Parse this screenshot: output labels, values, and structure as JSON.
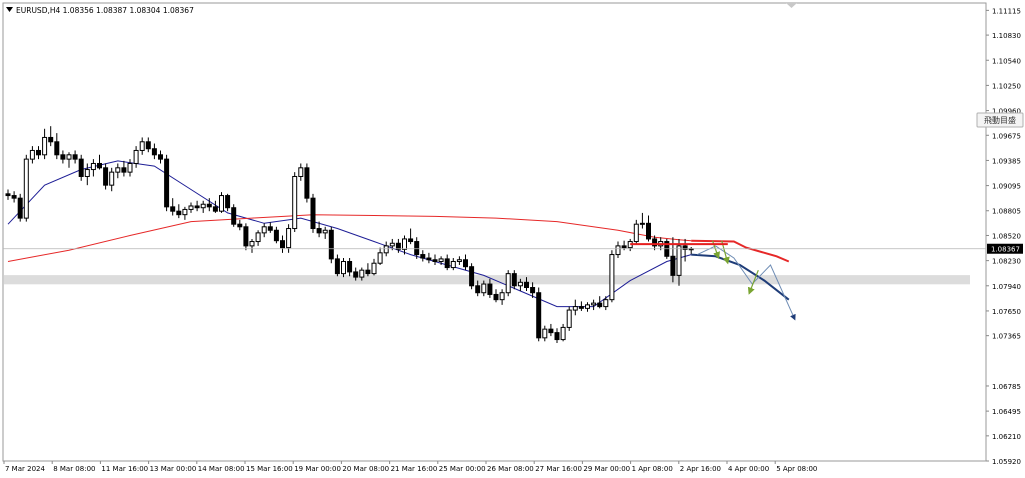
{
  "header": {
    "symbol_line": "EURUSD,H4  1.08356 1.08387 1.08304 1.08367"
  },
  "side_button_label": "飛動目盛",
  "chart_data": {
    "type": "candlestick",
    "symbol": "EURUSD",
    "timeframe": "H4",
    "ohlc_header": {
      "open": 1.08356,
      "high": 1.08387,
      "low": 1.08304,
      "close": 1.08367
    },
    "current_price_label": "1.08367",
    "ylim": [
      1.0592,
      1.112
    ],
    "y_tick_labels": [
      "1.11115",
      "1.10830",
      "1.10540",
      "1.10250",
      "1.09960",
      "1.09675",
      "1.09385",
      "1.09095",
      "1.08805",
      "1.08520",
      "1.08230",
      "1.07940",
      "1.07650",
      "1.07365",
      "1.06785",
      "1.06495",
      "1.06210",
      "1.05920"
    ],
    "x_tick_labels": [
      "7 Mar 2024",
      "8 Mar 08:00",
      "11 Mar 16:00",
      "13 Mar 00:00",
      "14 Mar 08:00",
      "15 Mar 16:00",
      "19 Mar 00:00",
      "20 Mar 08:00",
      "21 Mar 16:00",
      "25 Mar 00:00",
      "26 Mar 08:00",
      "27 Mar 16:00",
      "29 Mar 00:00",
      "1 Apr 08:00",
      "2 Apr 16:00",
      "4 Apr 00:00",
      "5 Apr 08:00"
    ],
    "candles": [
      [
        1.09,
        1.0905,
        1.0893,
        1.0898
      ],
      [
        1.0898,
        1.0903,
        1.089,
        1.0895
      ],
      [
        1.0895,
        1.09,
        1.0868,
        1.0872
      ],
      [
        1.0872,
        1.0945,
        1.0868,
        1.094
      ],
      [
        1.094,
        1.0955,
        1.0935,
        1.095
      ],
      [
        1.095,
        1.0955,
        1.094,
        1.0945
      ],
      [
        1.0945,
        1.0975,
        1.094,
        1.0965
      ],
      [
        1.0965,
        1.0978,
        1.0955,
        1.096
      ],
      [
        1.096,
        1.097,
        1.094,
        1.0945
      ],
      [
        1.0945,
        1.095,
        1.0935,
        1.094
      ],
      [
        1.094,
        1.0948,
        1.093,
        1.0945
      ],
      [
        1.0945,
        1.095,
        1.0935,
        1.094
      ],
      [
        1.094,
        1.0945,
        1.0915,
        1.092
      ],
      [
        1.092,
        1.0935,
        1.091,
        1.0928
      ],
      [
        1.0928,
        1.094,
        1.092,
        1.0935
      ],
      [
        1.0935,
        1.0945,
        1.0928,
        1.093
      ],
      [
        1.093,
        1.0935,
        1.0905,
        1.091
      ],
      [
        1.091,
        1.093,
        1.0903,
        1.0925
      ],
      [
        1.0925,
        1.0935,
        1.0918,
        1.093
      ],
      [
        1.093,
        1.0938,
        1.092,
        1.0925
      ],
      [
        1.0925,
        1.094,
        1.092,
        1.0935
      ],
      [
        1.0935,
        1.0955,
        1.093,
        1.095
      ],
      [
        1.095,
        1.0965,
        1.0945,
        1.096
      ],
      [
        1.096,
        1.0965,
        1.0948,
        1.0952
      ],
      [
        1.0952,
        1.0958,
        1.094,
        1.0945
      ],
      [
        1.0945,
        1.095,
        1.0935,
        1.094
      ],
      [
        1.094,
        1.0945,
        1.088,
        1.0885
      ],
      [
        1.0885,
        1.0895,
        1.0875,
        1.088
      ],
      [
        1.088,
        1.0888,
        1.0872,
        1.0876
      ],
      [
        1.0876,
        1.0885,
        1.087,
        1.0882
      ],
      [
        1.0882,
        1.089,
        1.0878,
        1.0886
      ],
      [
        1.0886,
        1.0892,
        1.088,
        1.0884
      ],
      [
        1.0884,
        1.0892,
        1.0878,
        1.0888
      ],
      [
        1.0888,
        1.0895,
        1.088,
        1.0885
      ],
      [
        1.0885,
        1.0892,
        1.0878,
        1.088
      ],
      [
        1.088,
        1.0902,
        1.0878,
        1.0898
      ],
      [
        1.0898,
        1.09,
        1.088,
        1.0884
      ],
      [
        1.0884,
        1.0888,
        1.0862,
        1.0865
      ],
      [
        1.0865,
        1.087,
        1.0858,
        1.0862
      ],
      [
        1.0862,
        1.0866,
        1.0835,
        1.084
      ],
      [
        1.084,
        1.0848,
        1.0832,
        1.0845
      ],
      [
        1.0845,
        1.0858,
        1.084,
        1.0855
      ],
      [
        1.0855,
        1.0866,
        1.085,
        1.0862
      ],
      [
        1.0862,
        1.0867,
        1.0855,
        1.0858
      ],
      [
        1.0858,
        1.0862,
        1.0843,
        1.0846
      ],
      [
        1.0846,
        1.0852,
        1.0832,
        1.0838
      ],
      [
        1.0838,
        1.0865,
        1.0832,
        1.086
      ],
      [
        1.086,
        1.0925,
        1.0856,
        1.092
      ],
      [
        1.092,
        1.0935,
        1.0915,
        1.093
      ],
      [
        1.093,
        1.0935,
        1.089,
        1.0895
      ],
      [
        1.0895,
        1.09,
        1.0855,
        1.086
      ],
      [
        1.086,
        1.0868,
        1.085,
        1.0855
      ],
      [
        1.0855,
        1.0862,
        1.0848,
        1.0858
      ],
      [
        1.0858,
        1.0862,
        1.082,
        1.0825
      ],
      [
        1.0825,
        1.083,
        1.0805,
        1.0808
      ],
      [
        1.0808,
        1.0826,
        1.0804,
        1.0822
      ],
      [
        1.0822,
        1.0826,
        1.0805,
        1.081
      ],
      [
        1.081,
        1.0815,
        1.08,
        1.0804
      ],
      [
        1.0804,
        1.0815,
        1.08,
        1.0812
      ],
      [
        1.0812,
        1.082,
        1.0805,
        1.0808
      ],
      [
        1.0808,
        1.0825,
        1.0806,
        1.082
      ],
      [
        1.082,
        1.0838,
        1.0818,
        1.0832
      ],
      [
        1.0832,
        1.0845,
        1.0828,
        1.084
      ],
      [
        1.084,
        1.0848,
        1.0835,
        1.0843
      ],
      [
        1.0843,
        1.0848,
        1.0832,
        1.0836
      ],
      [
        1.0836,
        1.0852,
        1.083,
        1.0848
      ],
      [
        1.0848,
        1.086,
        1.0842,
        1.0845
      ],
      [
        1.0845,
        1.085,
        1.0825,
        1.083
      ],
      [
        1.083,
        1.0835,
        1.0822,
        1.0826
      ],
      [
        1.0826,
        1.0832,
        1.082,
        1.0824
      ],
      [
        1.0824,
        1.083,
        1.0818,
        1.0822
      ],
      [
        1.0822,
        1.0828,
        1.0818,
        1.0825
      ],
      [
        1.0825,
        1.083,
        1.0812,
        1.0815
      ],
      [
        1.0815,
        1.0826,
        1.0812,
        1.0822
      ],
      [
        1.0822,
        1.0828,
        1.0818,
        1.0824
      ],
      [
        1.0824,
        1.083,
        1.0812,
        1.0816
      ],
      [
        1.0816,
        1.082,
        1.079,
        1.0794
      ],
      [
        1.0794,
        1.08,
        1.0782,
        1.0786
      ],
      [
        1.0786,
        1.08,
        1.0782,
        1.0796
      ],
      [
        1.0796,
        1.0802,
        1.078,
        1.0784
      ],
      [
        1.0784,
        1.079,
        1.0775,
        1.0778
      ],
      [
        1.0778,
        1.079,
        1.0772,
        1.0786
      ],
      [
        1.0786,
        1.0812,
        1.0782,
        1.0808
      ],
      [
        1.0808,
        1.0812,
        1.079,
        1.0794
      ],
      [
        1.0794,
        1.0802,
        1.0788,
        1.0798
      ],
      [
        1.0798,
        1.0804,
        1.0788,
        1.0792
      ],
      [
        1.0792,
        1.0798,
        1.078,
        1.0786
      ],
      [
        1.0786,
        1.0792,
        1.073,
        1.0734
      ],
      [
        1.0734,
        1.0748,
        1.073,
        1.0744
      ],
      [
        1.0744,
        1.075,
        1.0736,
        1.074
      ],
      [
        1.074,
        1.0745,
        1.0728,
        1.0732
      ],
      [
        1.0732,
        1.075,
        1.073,
        1.0746
      ],
      [
        1.0746,
        1.077,
        1.0742,
        1.0766
      ],
      [
        1.0766,
        1.0778,
        1.076,
        1.077
      ],
      [
        1.077,
        1.0776,
        1.0765,
        1.0768
      ],
      [
        1.0768,
        1.0775,
        1.0764,
        1.0772
      ],
      [
        1.0772,
        1.0778,
        1.0766,
        1.0774
      ],
      [
        1.0774,
        1.0782,
        1.0768,
        1.077
      ],
      [
        1.077,
        1.0782,
        1.0766,
        1.0778
      ],
      [
        1.0778,
        1.0835,
        1.0775,
        1.083
      ],
      [
        1.083,
        1.0845,
        1.0826,
        1.084
      ],
      [
        1.084,
        1.0846,
        1.0835,
        1.0838
      ],
      [
        1.0838,
        1.0848,
        1.0834,
        1.0845
      ],
      [
        1.0845,
        1.087,
        1.0842,
        1.0865
      ],
      [
        1.0865,
        1.0878,
        1.086,
        1.0866
      ],
      [
        1.0866,
        1.0875,
        1.0845,
        1.0848
      ],
      [
        1.0848,
        1.0852,
        1.0835,
        1.084
      ],
      [
        1.084,
        1.085,
        1.0835,
        1.0845
      ],
      [
        1.0845,
        1.0848,
        1.0825,
        1.0828
      ],
      [
        1.0828,
        1.085,
        1.0798,
        1.0806
      ],
      [
        1.0806,
        1.0848,
        1.0794,
        1.084
      ],
      [
        1.084,
        1.0848,
        1.0822,
        1.0836
      ],
      [
        1.08356,
        1.08387,
        1.08304,
        1.08367
      ]
    ],
    "series": [
      {
        "name": "",
        "color": "#1e1e96",
        "x": [
          0,
          6,
          12,
          18,
          24,
          30,
          36,
          42,
          48,
          54,
          60,
          66,
          72,
          78,
          84,
          90,
          96,
          102,
          108,
          112
        ],
        "values": [
          1.0865,
          1.091,
          1.0928,
          1.0938,
          1.0932,
          1.0905,
          1.0878,
          1.0866,
          1.0872,
          1.086,
          1.0845,
          1.083,
          1.0818,
          1.0806,
          1.0788,
          1.077,
          1.077,
          1.08,
          1.0822,
          1.083
        ]
      },
      {
        "name": "",
        "color": "#e62828",
        "x": [
          0,
          10,
          20,
          30,
          40,
          50,
          60,
          70,
          80,
          90,
          100,
          106,
          110,
          112
        ],
        "values": [
          1.0822,
          1.0835,
          1.0852,
          1.0868,
          1.0872,
          1.0876,
          1.0875,
          1.0874,
          1.0872,
          1.0868,
          1.0858,
          1.085,
          1.0847,
          1.0846
        ]
      }
    ],
    "projections": [
      {
        "name": "",
        "color": "#e62828",
        "x": [
          112,
          119,
          121,
          124,
          126,
          128
        ],
        "values": [
          1.0846,
          1.0845,
          1.0838,
          1.0832,
          1.0828,
          1.0822
        ]
      },
      {
        "name": "",
        "color": "#1e3c78",
        "x": [
          112,
          116,
          120,
          124,
          128
        ],
        "values": [
          1.083,
          1.0828,
          1.0818,
          1.08,
          1.0778
        ]
      }
    ],
    "support_zone": [
      1.0798,
      1.0804
    ],
    "resistance_line": {
      "from_x": 102,
      "to_x": 118,
      "y": 1.0842
    },
    "grid": false,
    "legend": "none"
  }
}
